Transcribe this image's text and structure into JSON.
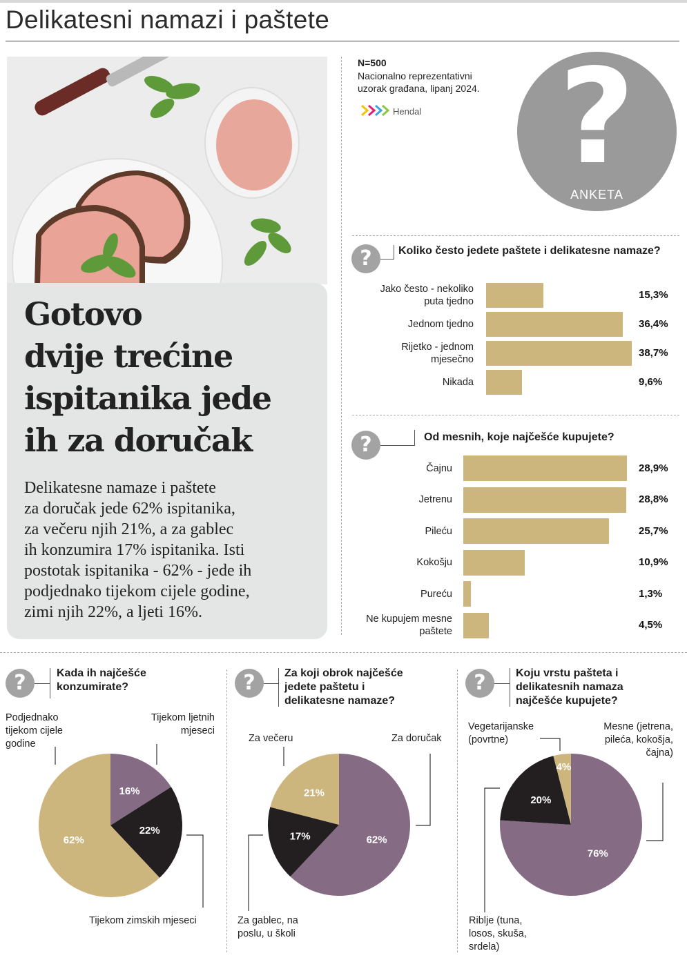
{
  "page": {
    "title": "Delikatesni namazi i paštete"
  },
  "hero": {
    "headline_lines": [
      "Gotovo",
      "dvije trećine",
      "ispitanika jede",
      "ih za doručak"
    ],
    "body_lines": [
      "Delikatesne namaze i paštete",
      "za doručak jede 62% ispitanika,",
      "za večeru njih 21%, a za gablec",
      "ih konzumira 17% ispitanika. Isti",
      "postotak ispitanika - 62% - jede ih",
      "podjednako tijekom cijele godine,",
      "zimi njih 22%, a ljeti 16%."
    ]
  },
  "survey": {
    "n": "N=500",
    "sample_line1": "Nacionalno reprezentativni",
    "sample_line2": "uzorak građana, lipanj 2024.",
    "source": "Hendal",
    "badge": "ANKETA",
    "question_mark": "?"
  },
  "colors": {
    "gold": "#cdb57e",
    "purple": "#866b85",
    "dark": "#231f20",
    "grey": "#a3a3a3"
  },
  "chart_data": [
    {
      "type": "bar",
      "orientation": "horizontal",
      "title": "Koliko često jedete paštete i delikatesne namaze?",
      "categories": [
        [
          "Jako često - nekoliko",
          "puta tjedno"
        ],
        [
          "Jednom tjedno"
        ],
        [
          "Rijetko - jednom",
          "mjesečno"
        ],
        [
          "Nikada"
        ]
      ],
      "values": [
        15.3,
        36.4,
        38.7,
        9.6
      ],
      "value_labels": [
        "15,3%",
        "36,4%",
        "38,7%",
        "9,6%"
      ],
      "color": "#cdb57e"
    },
    {
      "type": "bar",
      "orientation": "horizontal",
      "title": "Od mesnih, koje najčešće kupujete?",
      "categories": [
        [
          "Čajnu"
        ],
        [
          "Jetrenu"
        ],
        [
          "Pileću"
        ],
        [
          "Kokošju"
        ],
        [
          "Pureću"
        ],
        [
          "Ne kupujem mesne",
          "paštete"
        ]
      ],
      "values": [
        28.9,
        28.8,
        25.7,
        10.9,
        1.3,
        4.5
      ],
      "value_labels": [
        "28,9%",
        "28,8%",
        "25,7%",
        "10,9%",
        "1,3%",
        "4,5%"
      ],
      "color": "#cdb57e"
    },
    {
      "type": "pie",
      "title": "Kada ih najčešće konzumirate?",
      "slices": [
        {
          "label": "Tijekom ljetnih mjeseci",
          "value": 16,
          "value_label": "16%",
          "color": "#866b85"
        },
        {
          "label": "Tijekom zimskih mjeseci",
          "value": 22,
          "value_label": "22%",
          "color": "#231f20"
        },
        {
          "label": "Podjednako tijekom cijele godine",
          "value": 62,
          "value_label": "62%",
          "color": "#cdb57e"
        }
      ]
    },
    {
      "type": "pie",
      "title": "Za koji obrok najčešće jedete paštetu i delikatesne namaze?",
      "slices": [
        {
          "label": "Za doručak",
          "value": 62,
          "value_label": "62%",
          "color": "#866b85"
        },
        {
          "label": "Za gablec, na poslu, u školi",
          "value": 17,
          "value_label": "17%",
          "color": "#231f20"
        },
        {
          "label": "Za večeru",
          "value": 21,
          "value_label": "21%",
          "color": "#cdb57e"
        }
      ]
    },
    {
      "type": "pie",
      "title": "Koju vrstu pašteta i delikatesnih namaza najčešće kupujete?",
      "slices": [
        {
          "label": "Mesne (jetrena, pileća, kokošja, čajna)",
          "value": 76,
          "value_label": "76%",
          "color": "#866b85"
        },
        {
          "label": "Riblje (tuna, losos, skuša, srdela)",
          "value": 20,
          "value_label": "20%",
          "color": "#231f20"
        },
        {
          "label": "Vegetarijanske (povrtne)",
          "value": 4,
          "value_label": "4%",
          "color": "#cdb57e"
        }
      ]
    }
  ],
  "q1": {
    "title": "Koliko često jedete paštete i delikatesne namaze?"
  },
  "q2": {
    "title": "Od mesnih, koje najčešće kupujete?"
  },
  "q3": {
    "title_line1": "Kada ih najčešće",
    "title_line2": "konzumirate?",
    "label_a_1": "Podjednako",
    "label_a_2": "tijekom cijele",
    "label_a_3": "godine",
    "label_b_1": "Tijekom ljetnih",
    "label_b_2": "mjeseci",
    "label_c": "Tijekom zimskih mjeseci"
  },
  "q4": {
    "title_line1": "Za koji obrok najčešće",
    "title_line2": "jedete paštetu i",
    "title_line3": "delikatesne namaze?",
    "label_a": "Za večeru",
    "label_b": "Za doručak",
    "label_c_1": "Za gablec, na",
    "label_c_2": "poslu, u školi"
  },
  "q5": {
    "title_line1": "Koju vrstu pašteta i",
    "title_line2": "delikatesnih namaza",
    "title_line3": "najčešće kupujete?",
    "label_a_1": "Vegetarijanske",
    "label_a_2": "(povrtne)",
    "label_b_1": "Mesne (jetrena,",
    "label_b_2": "pileća, kokošja,",
    "label_b_3": "čajna)",
    "label_c_1": "Riblje (tuna,",
    "label_c_2": "losos, skuša,",
    "label_c_3": "srdela)"
  }
}
